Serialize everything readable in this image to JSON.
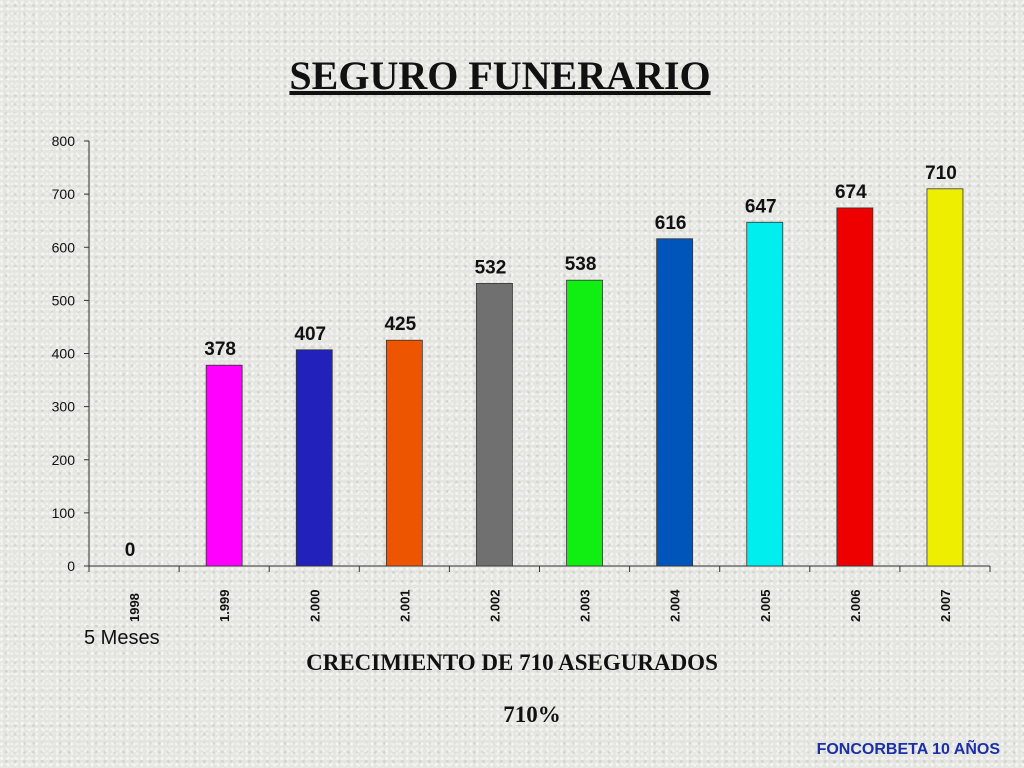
{
  "slide": {
    "title": "SEGURO FUNERARIO",
    "note": "5 Meses",
    "subtitle": "CRECIMIENTO DE 710 ASEGURADOS",
    "percent": "710%",
    "footer": "FONCORBETA 10 AÑOS"
  },
  "chart_data": {
    "type": "bar",
    "title": "",
    "xlabel": "",
    "ylabel": "",
    "ylim": [
      0,
      800
    ],
    "yticks": [
      0,
      100,
      200,
      300,
      400,
      500,
      600,
      700,
      800
    ],
    "grid": false,
    "categories": [
      "1998",
      "1.999",
      "2.000",
      "2.001",
      "2.002",
      "2.003",
      "2.004",
      "2.005",
      "2.006",
      "2.007"
    ],
    "values": [
      0,
      378,
      407,
      425,
      532,
      538,
      616,
      647,
      674,
      710
    ],
    "colors": [
      "#ff00ff",
      "#ff00ff",
      "#2222bb",
      "#ee5500",
      "#707070",
      "#11ee11",
      "#0055bb",
      "#00eeee",
      "#ee0000",
      "#eeee00"
    ]
  }
}
